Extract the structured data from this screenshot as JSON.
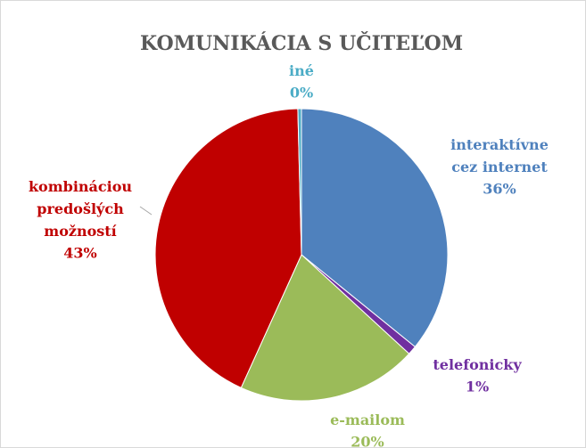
{
  "chart_data": {
    "type": "pie",
    "title": "KOMUNIKÁCIA S UČITEĽOM",
    "categories": [
      "interaktívne cez internet",
      "telefonicky",
      "e-mailom",
      "kombináciou predošlých možností",
      "iné"
    ],
    "values": [
      36,
      1,
      20,
      43,
      0.4
    ],
    "value_labels": [
      "36%",
      "1%",
      "20%",
      "43%",
      "0%"
    ],
    "colors": [
      "#4f81bd",
      "#7030a0",
      "#9bbb59",
      "#c00000",
      "#4bacc6"
    ]
  }
}
